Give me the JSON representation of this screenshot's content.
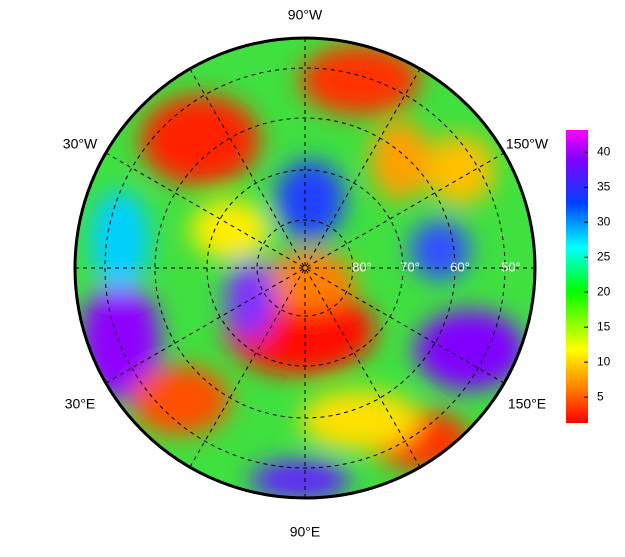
{
  "map": {
    "longitude_labels": [
      "90°W",
      "30°W",
      "150°W",
      "30°E",
      "150°E",
      "90°E"
    ],
    "latitude_labels": [
      "80°",
      "70°",
      "60°",
      "50°"
    ],
    "colorbar": {
      "lim": [
        1.3,
        43.2
      ],
      "ticks": [
        5,
        10,
        15,
        20,
        25,
        30,
        35,
        40
      ]
    }
  }
}
